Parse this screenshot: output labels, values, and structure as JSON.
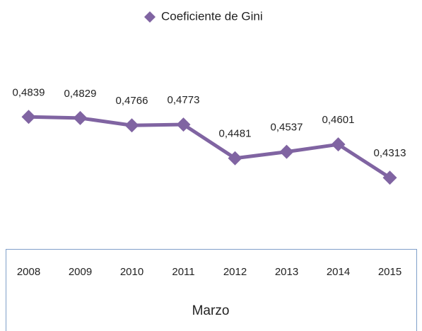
{
  "chart_data": {
    "type": "line",
    "categories": [
      "2008",
      "2009",
      "2010",
      "2011",
      "2012",
      "2013",
      "2014",
      "2015"
    ],
    "series": [
      {
        "name": "Coeficiente de Gini",
        "color": "#8064a2",
        "values": [
          0.4839,
          0.4829,
          0.4766,
          0.4773,
          0.4481,
          0.4537,
          0.4601,
          0.4313
        ],
        "value_labels": [
          "0,4839",
          "0,4829",
          "0,4766",
          "0,4773",
          "0,4481",
          "0,4537",
          "0,4601",
          "0,4313"
        ]
      }
    ],
    "x_label": "Marzo",
    "ylim": [
      0.38,
      0.56
    ],
    "legend": "top"
  }
}
